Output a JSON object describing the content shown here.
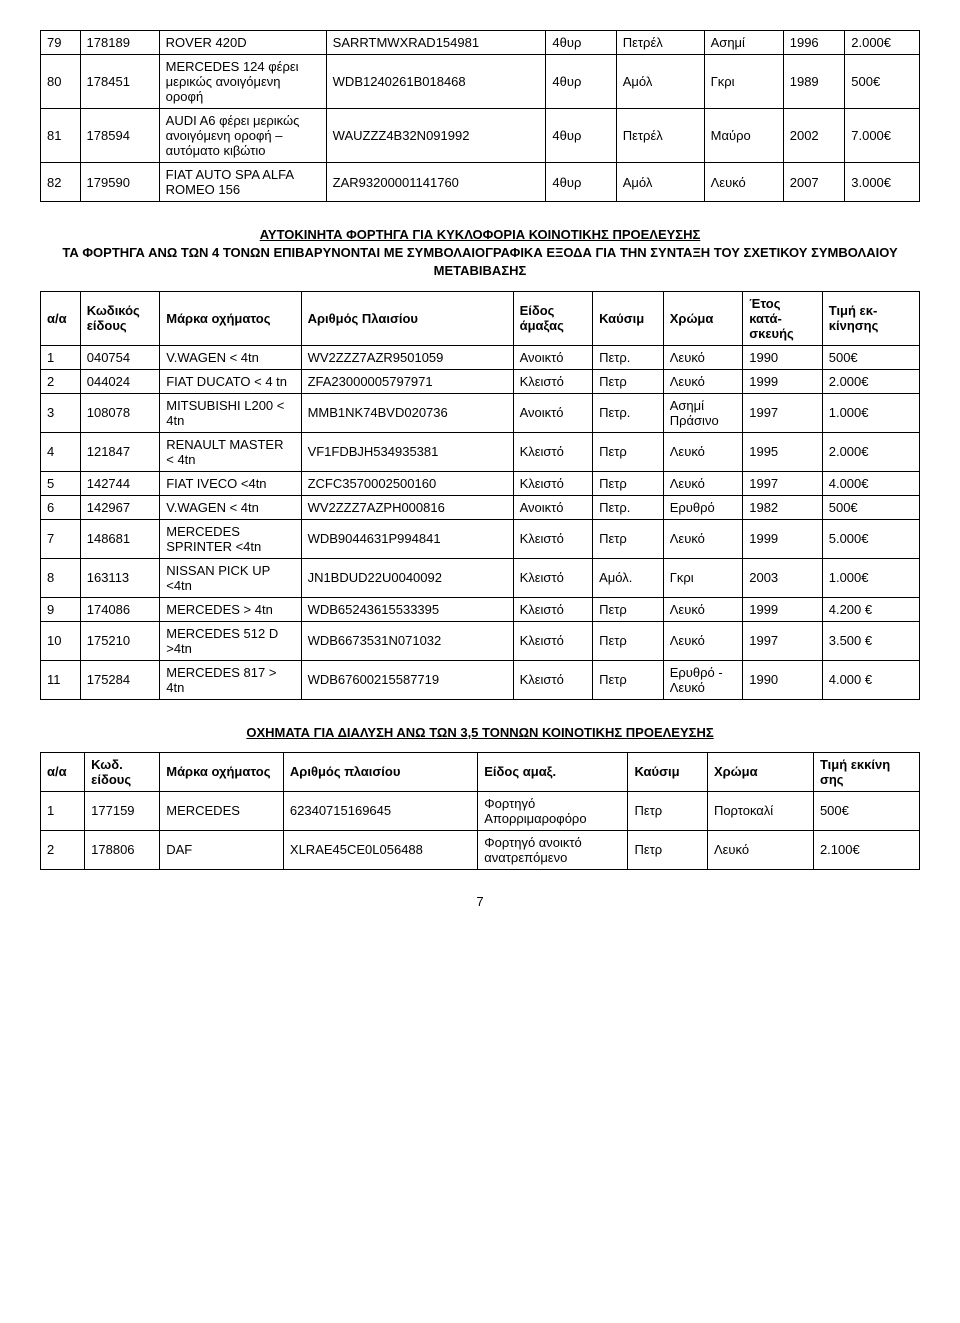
{
  "table1": {
    "rows": [
      [
        "79",
        "178189",
        "ROVER 420D",
        "SARRTMWXRAD154981",
        "4θυρ",
        "Πετρέλ",
        "Ασημί",
        "1996",
        "2.000€"
      ],
      [
        "80",
        "178451",
        "MERCEDES 124 φέρει μερικώς ανοιγόμενη οροφή",
        "WDB1240261B018468",
        "4θυρ",
        "Αμόλ",
        "Γκρι",
        "1989",
        "500€"
      ],
      [
        "81",
        "178594",
        "AUDI A6 φέρει μερικώς ανοιγόμενη οροφή – αυτόματο κιβώτιο",
        "WAUZZZ4B32N091992",
        "4θυρ",
        "Πετρέλ",
        "Μαύρο",
        "2002",
        "7.000€"
      ],
      [
        "82",
        "179590",
        "FIAT AUTO SPA ALFA ROMEO 156",
        "ZAR93200001141760",
        "4θυρ",
        "Αμόλ",
        "Λευκό",
        "2007",
        "3.000€"
      ]
    ]
  },
  "heading2": {
    "line1": "ΑΥΤΟΚΙΝΗΤΑ ΦΟΡΤΗΓΑ ΓΙΑ  ΚΥΚΛΟΦΟΡΙΑ ΚΟΙΝΟΤΙΚΗΣ ΠΡΟΕΛΕΥΣΗΣ",
    "line2": "ΤΑ ΦΟΡΤΗΓΑ ΑΝΩ ΤΩΝ 4 ΤΟΝΩΝ ΕΠΙΒΑΡΥΝΟΝΤΑΙ ΜΕ ΣΥΜΒΟΛΑΙΟΓΡΑΦΙΚΑ ΕΞΟΔΑ ΓΙΑ ΤΗΝ ΣΥΝΤΑΞΗ ΤΟΥ ΣΧΕΤΙΚΟΥ ΣΥΜΒΟΛΑΙΟΥ ΜΕΤΑΒΙΒΑΣΗΣ"
  },
  "table2": {
    "columns": [
      "α/α",
      "Κωδικός είδους",
      "Μάρκα οχήματος",
      "Αριθμός Πλαισίου",
      "Είδος άμαξας",
      "Καύσιμ",
      "Χρώμα",
      "Έτος κατά-σκευής",
      "Τιμή εκ-κίνησης"
    ],
    "rows": [
      [
        "1",
        "040754",
        "V.WAGEN < 4tn",
        "WV2ZZZ7AZR9501059",
        "Ανοικτό",
        "Πετρ.",
        "Λευκό",
        "1990",
        "500€"
      ],
      [
        "2",
        "044024",
        "FIAT DUCATO < 4 tn",
        "ZFA23000005797971",
        "Κλειστό",
        "Πετρ",
        "Λευκό",
        "1999",
        "2.000€"
      ],
      [
        "3",
        "108078",
        "MITSUBISHI L200 < 4tn",
        "MMB1NK74BVD020736",
        "Ανοικτό",
        "Πετρ.",
        "Ασημί Πράσινο",
        "1997",
        "1.000€"
      ],
      [
        "4",
        "121847",
        "RENAULT MASTER < 4tn",
        "VF1FDBJH534935381",
        "Κλειστό",
        "Πετρ",
        "Λευκό",
        "1995",
        "2.000€"
      ],
      [
        "5",
        "142744",
        "FIAT IVECO <4tn",
        "ZCFC3570002500160",
        "Κλειστό",
        "Πετρ",
        "Λευκό",
        "1997",
        "4.000€"
      ],
      [
        "6",
        "142967",
        "V.WAGEN < 4tn",
        "WV2ZZZ7AZPH000816",
        "Ανοικτό",
        "Πετρ.",
        "Ερυθρό",
        "1982",
        "500€"
      ],
      [
        "7",
        "148681",
        "MERCEDES SPRINTER <4tn",
        "WDB9044631P994841",
        "Κλειστό",
        "Πετρ",
        "Λευκό",
        "1999",
        "5.000€"
      ],
      [
        "8",
        "163113",
        "NISSAN PICK UP <4tn",
        "JN1BDUD22U0040092",
        "Κλειστό",
        "Αμόλ.",
        "Γκρι",
        "2003",
        "1.000€"
      ],
      [
        "9",
        "174086",
        "MERCEDES > 4tn",
        "WDB65243615533395",
        "Κλειστό",
        "Πετρ",
        "Λευκό",
        "1999",
        "4.200 €"
      ],
      [
        "10",
        "175210",
        "MERCEDES 512 D >4tn",
        "WDB6673531N071032",
        "Κλειστό",
        "Πετρ",
        "Λευκό",
        "1997",
        "3.500 €"
      ],
      [
        "11",
        "175284",
        "MERCEDES 817  > 4tn",
        "WDB67600215587719",
        "Κλειστό",
        "Πετρ",
        "Ερυθρό - Λευκό",
        "1990",
        "4.000 €"
      ]
    ]
  },
  "heading3": "ΟΧΗΜΑΤΑ ΓΙΑ ΔΙΑΛΥΣΗ ΑΝΩ ΤΩΝ 3,5  ΤΟΝΝΩΝ  ΚΟΙΝΟΤΙΚΗΣ ΠΡΟΕΛΕΥΣΗΣ",
  "table3": {
    "columns": [
      "α/α",
      "Κωδ. είδους",
      "Μάρκα οχήματος",
      "Αριθμός πλαισίου",
      "Είδος αμαξ.",
      "Καύσιμ",
      "Χρώμα",
      "Τιμή εκκίνη σης"
    ],
    "rows": [
      [
        "1",
        "177159",
        "MERCEDES",
        "62340715169645",
        "Φορτηγό Απορριμαροφόρο",
        "Πετρ",
        "Πορτοκαλί",
        "500€"
      ],
      [
        "2",
        "178806",
        "DAF",
        "XLRAE45CE0L056488",
        "Φορτηγό ανοικτό ανατρεπόμενο",
        "Πετρ",
        "Λευκό",
        "2.100€"
      ]
    ]
  },
  "pagenum": "7"
}
